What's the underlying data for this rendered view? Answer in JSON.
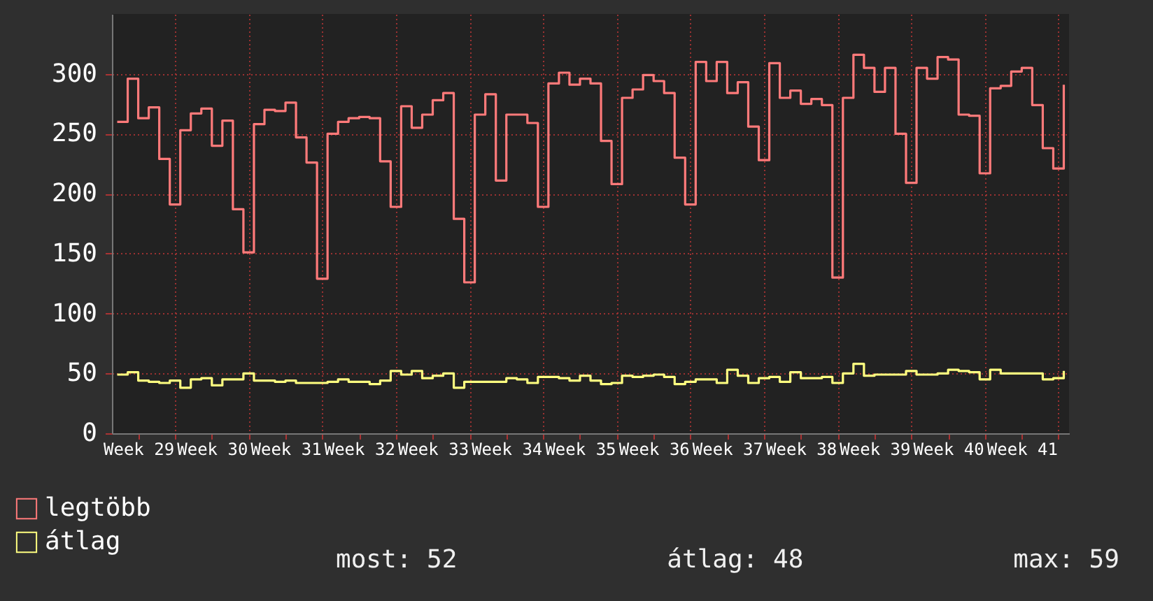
{
  "chart_data": {
    "type": "step",
    "categories": [
      null,
      null,
      "Week 29",
      null,
      null,
      null,
      null,
      null,
      null,
      "Week 30",
      null,
      null,
      null,
      null,
      null,
      null,
      "Week 31",
      null,
      null,
      null,
      null,
      null,
      null,
      "Week 32",
      null,
      null,
      null,
      null,
      null,
      null,
      "Week 33",
      null,
      null,
      null,
      null,
      null,
      null,
      "Week 34",
      null,
      null,
      null,
      null,
      null,
      null,
      "Week 35",
      null,
      null,
      null,
      null,
      null,
      null,
      "Week 36",
      null,
      null,
      null,
      null,
      null,
      null,
      "Week 37",
      null,
      null,
      null,
      null,
      null,
      null,
      "Week 38",
      null,
      null,
      null,
      null,
      null,
      null,
      "Week 39",
      null,
      null,
      null,
      null,
      null,
      null,
      "Week 40",
      null,
      null,
      null,
      null,
      null,
      null,
      "Week 41",
      null,
      null,
      null,
      null
    ],
    "series": [
      {
        "name": "legtöbb",
        "color": "#ff7a7a",
        "values": [
          260,
          296,
          263,
          272,
          229,
          191,
          253,
          267,
          271,
          240,
          261,
          187,
          151,
          258,
          270,
          269,
          276,
          247,
          226,
          129,
          250,
          260,
          263,
          264,
          263,
          227,
          189,
          273,
          255,
          266,
          278,
          284,
          179,
          126,
          266,
          283,
          211,
          266,
          266,
          259,
          189,
          292,
          301,
          291,
          296,
          292,
          244,
          208,
          280,
          287,
          299,
          294,
          284,
          230,
          191,
          310,
          294,
          310,
          284,
          293,
          256,
          228,
          309,
          280,
          286,
          275,
          279,
          274,
          130,
          280,
          316,
          305,
          285,
          305,
          250,
          209,
          305,
          296,
          314,
          312,
          266,
          265,
          217,
          288,
          290,
          302,
          305,
          274,
          238,
          221,
          291
        ]
      },
      {
        "name": "átlag",
        "color": "#ffff80",
        "values": [
          49,
          51,
          44,
          43,
          42,
          44,
          38,
          45,
          46,
          40,
          45,
          45,
          50,
          44,
          44,
          43,
          44,
          42,
          42,
          42,
          43,
          45,
          43,
          43,
          41,
          44,
          52,
          49,
          52,
          46,
          48,
          50,
          38,
          43,
          43,
          43,
          43,
          46,
          45,
          42,
          47,
          47,
          46,
          44,
          48,
          44,
          41,
          42,
          48,
          47,
          48,
          49,
          47,
          41,
          43,
          45,
          45,
          42,
          53,
          48,
          42,
          46,
          47,
          43,
          51,
          46,
          46,
          47,
          42,
          50,
          58,
          48,
          49,
          49,
          49,
          52,
          49,
          49,
          50,
          53,
          52,
          51,
          45,
          53,
          50,
          50,
          50,
          50,
          45,
          46,
          52
        ]
      }
    ],
    "ylim": [
      0,
      350
    ],
    "yticks": [
      0,
      50,
      100,
      150,
      200,
      250,
      300
    ],
    "grid": true,
    "legend": "bottom left",
    "annotations": [
      "most: 52",
      "átlag: 48",
      "max: 59"
    ]
  }
}
